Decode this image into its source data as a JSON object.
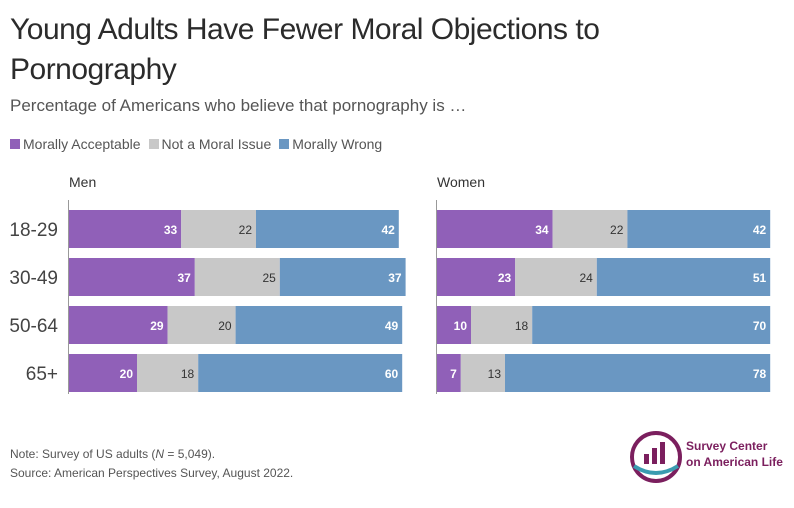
{
  "title": "Young Adults Have Fewer Moral Objections to Pornography",
  "subtitle": "Percentage of Americans who believe that pornography is …",
  "colors": {
    "acceptable": "#9060b8",
    "not_moral": "#c8c8c8",
    "wrong": "#6a97c2",
    "axis": "#999999"
  },
  "chart_data": {
    "type": "bar",
    "orientation": "horizontal-stacked",
    "categories": [
      "18-29",
      "30-49",
      "50-64",
      "65+"
    ],
    "legend": [
      "Morally Acceptable",
      "Not a Moral Issue",
      "Morally Wrong"
    ],
    "legend_position": "top-left",
    "panels": [
      {
        "name": "Men",
        "series": [
          {
            "name": "Morally Acceptable",
            "values": [
              33,
              37,
              29,
              20
            ]
          },
          {
            "name": "Not a Moral Issue",
            "values": [
              22,
              25,
              20,
              18
            ]
          },
          {
            "name": "Morally Wrong",
            "values": [
              42,
              37,
              49,
              60
            ]
          }
        ]
      },
      {
        "name": "Women",
        "series": [
          {
            "name": "Morally Acceptable",
            "values": [
              34,
              23,
              10,
              7
            ]
          },
          {
            "name": "Not a Moral Issue",
            "values": [
              22,
              24,
              18,
              13
            ]
          },
          {
            "name": "Morally Wrong",
            "values": [
              42,
              51,
              70,
              78
            ]
          }
        ]
      }
    ],
    "xlim": [
      0,
      100
    ]
  },
  "footer": {
    "note_prefix": "Note: Survey of US adults (",
    "note_n": "N",
    "note_suffix": " = 5,049).",
    "source": "Source: American Perspectives Survey, August 2022."
  },
  "logo": {
    "line1": "Survey Center",
    "line2": "on American Life"
  }
}
